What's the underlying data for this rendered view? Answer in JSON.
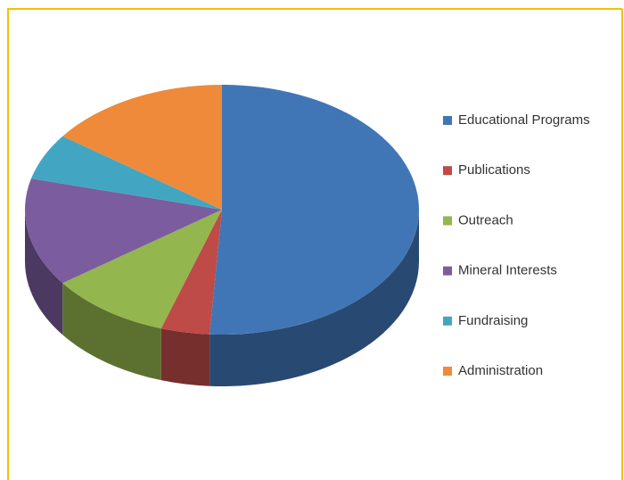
{
  "chart_data": {
    "type": "pie",
    "categories": [
      "Educational Programs",
      "Publications",
      "Outreach",
      "Mineral Interests",
      "Fundraising",
      "Administration"
    ],
    "values": [
      51,
      4,
      10,
      14,
      6,
      15
    ],
    "colors": [
      "#4176b6",
      "#be4b48",
      "#94b64e",
      "#7b5c9e",
      "#42a6c2",
      "#ef8a3a"
    ],
    "legend": "right"
  }
}
